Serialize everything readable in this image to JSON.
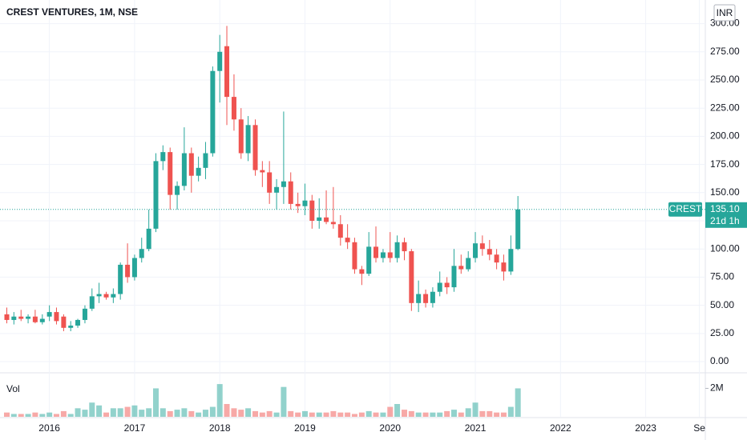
{
  "chart_data": {
    "type": "candlestick",
    "title": "CREST VENTURES, 1M, NSE",
    "currency": "INR",
    "volume_label": "Vol",
    "up_color": "#26a69a",
    "down_color": "#ef5350",
    "grid": true,
    "x": [
      2015.5,
      2015.583,
      2015.667,
      2015.75,
      2015.833,
      2015.917,
      2016,
      2016.083,
      2016.167,
      2016.25,
      2016.333,
      2016.417,
      2016.5,
      2016.583,
      2016.667,
      2016.75,
      2016.833,
      2016.917,
      2017,
      2017.083,
      2017.167,
      2017.25,
      2017.333,
      2017.417,
      2017.5,
      2017.583,
      2017.667,
      2017.75,
      2017.833,
      2017.917,
      2018,
      2018.083,
      2018.167,
      2018.25,
      2018.333,
      2018.417,
      2018.5,
      2018.583,
      2018.667,
      2018.75,
      2018.833,
      2018.917,
      2019,
      2019.083,
      2019.167,
      2019.25,
      2019.333,
      2019.417,
      2019.5,
      2019.583,
      2019.667,
      2019.75,
      2019.833,
      2019.917,
      2020,
      2020.083,
      2020.167,
      2020.25,
      2020.333,
      2020.417,
      2020.5,
      2020.583,
      2020.667,
      2020.75,
      2020.833,
      2020.917,
      2021,
      2021.083,
      2021.167,
      2021.25,
      2021.333,
      2021.417,
      2021.5
    ],
    "open": [
      42,
      37,
      40,
      38,
      40,
      35,
      40,
      44,
      40,
      30,
      32,
      37,
      47,
      58,
      60,
      57,
      60,
      86,
      75,
      92,
      100,
      118,
      178,
      186,
      148,
      156,
      185,
      165,
      172,
      185,
      258,
      280,
      235,
      215,
      185,
      210,
      170,
      168,
      150,
      155,
      160,
      140,
      138,
      143,
      125,
      128,
      124,
      122,
      110,
      106,
      82,
      78,
      102,
      92,
      97,
      92,
      106,
      98,
      52,
      60,
      52,
      62,
      70,
      66,
      85,
      82,
      92,
      105,
      100,
      95,
      88,
      80,
      100
    ],
    "high": [
      48,
      44,
      46,
      42,
      46,
      42,
      50,
      48,
      42,
      36,
      38,
      50,
      65,
      70,
      62,
      65,
      88,
      105,
      95,
      110,
      135,
      185,
      192,
      190,
      160,
      208,
      190,
      182,
      195,
      262,
      290,
      298,
      255,
      225,
      218,
      215,
      178,
      178,
      162,
      222,
      168,
      150,
      158,
      148,
      145,
      152,
      155,
      130,
      122,
      110,
      85,
      115,
      120,
      100,
      115,
      112,
      110,
      100,
      72,
      64,
      66,
      80,
      75,
      100,
      95,
      98,
      115,
      112,
      108,
      100,
      95,
      112,
      147
    ],
    "low": [
      34,
      33,
      36,
      34,
      34,
      33,
      36,
      33,
      27,
      27,
      30,
      34,
      45,
      52,
      55,
      52,
      55,
      70,
      72,
      88,
      98,
      115,
      170,
      135,
      135,
      152,
      150,
      160,
      162,
      182,
      230,
      210,
      205,
      180,
      178,
      165,
      155,
      140,
      135,
      140,
      135,
      132,
      130,
      118,
      118,
      122,
      118,
      103,
      100,
      78,
      68,
      76,
      88,
      88,
      88,
      88,
      90,
      45,
      44,
      48,
      48,
      58,
      60,
      62,
      78,
      80,
      88,
      94,
      90,
      82,
      72,
      77,
      99
    ],
    "close": [
      37,
      40,
      38,
      40,
      35,
      38,
      44,
      36,
      30,
      32,
      37,
      47,
      58,
      60,
      57,
      60,
      86,
      75,
      92,
      100,
      118,
      178,
      186,
      148,
      156,
      185,
      165,
      172,
      185,
      258,
      275,
      235,
      215,
      185,
      210,
      170,
      168,
      150,
      155,
      160,
      140,
      138,
      143,
      125,
      128,
      124,
      122,
      110,
      106,
      82,
      78,
      102,
      92,
      97,
      92,
      106,
      98,
      52,
      60,
      52,
      62,
      70,
      66,
      85,
      82,
      92,
      105,
      100,
      95,
      88,
      80,
      100,
      135.1
    ],
    "volume": [
      0.3,
      0.2,
      0.2,
      0.2,
      0.3,
      0.2,
      0.3,
      0.2,
      0.4,
      0.2,
      0.6,
      0.5,
      1.0,
      0.8,
      0.3,
      0.6,
      0.6,
      0.7,
      0.8,
      0.5,
      0.6,
      2.0,
      0.6,
      0.4,
      0.5,
      0.6,
      0.4,
      0.3,
      0.5,
      0.7,
      2.3,
      0.9,
      0.6,
      0.5,
      0.6,
      0.4,
      0.3,
      0.4,
      0.3,
      2.1,
      0.4,
      0.3,
      0.4,
      0.3,
      0.3,
      0.3,
      0.4,
      0.3,
      0.3,
      0.2,
      0.3,
      0.4,
      0.3,
      0.3,
      0.7,
      0.9,
      0.5,
      0.4,
      0.3,
      0.3,
      0.3,
      0.3,
      0.4,
      0.5,
      0.3,
      0.6,
      1.0,
      0.4,
      0.4,
      0.3,
      0.3,
      0.7,
      2.0
    ],
    "xlim": [
      2015.42,
      2023.7
    ],
    "xticks": [
      2016,
      2017,
      2018,
      2019,
      2020,
      2021,
      2022,
      2023,
      {
        "value": 2023.63,
        "label": "Se"
      }
    ],
    "ylim": [
      -9.2,
      321
    ],
    "yticks": [
      {
        "value": 0,
        "label": "0.00"
      },
      {
        "value": 25,
        "label": "25.00"
      },
      {
        "value": 50,
        "label": "50.00"
      },
      {
        "value": 75,
        "label": "75.00"
      },
      {
        "value": 100,
        "label": "100.00"
      },
      {
        "value": 125,
        "label": "125.00"
      },
      {
        "value": 150,
        "label": "150.00"
      },
      {
        "value": 175,
        "label": "175.00"
      },
      {
        "value": 200,
        "label": "200.00"
      },
      {
        "value": 225,
        "label": "225.00"
      },
      {
        "value": 250,
        "label": "250.00"
      },
      {
        "value": 275,
        "label": "275.00"
      },
      {
        "value": 300,
        "label": "300.00"
      }
    ],
    "vlim": [
      0,
      2.7
    ],
    "vticks": [
      {
        "value": 2,
        "label": "2M"
      }
    ],
    "last_price": {
      "symbol": "CREST",
      "value": 135.1,
      "label": "135.10",
      "countdown": "21d 1h"
    }
  }
}
